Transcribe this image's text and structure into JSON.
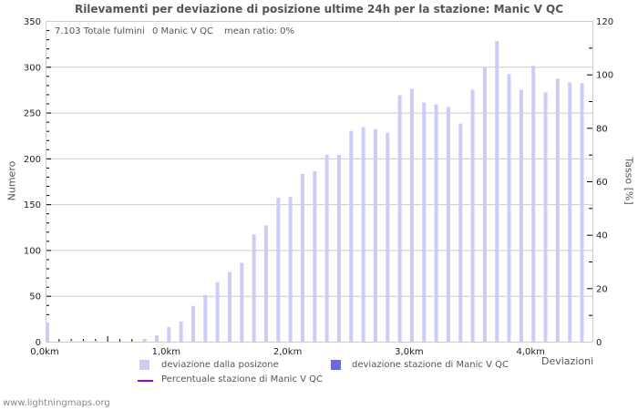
{
  "title": "Rilevamenti per deviazione di posizione ultime 24h per la stazione: Manic V QC",
  "info": {
    "total": "7.103 Totale fulmini",
    "station": "0 Manic V QC",
    "ratio": "mean ratio: 0%"
  },
  "axes": {
    "left_title": "Numero",
    "right_title": "Tasso [%]",
    "x_title": "Deviazioni"
  },
  "legend": {
    "items": [
      {
        "label": "deviazione dalla posizone",
        "color": "#ccccf8",
        "type": "box"
      },
      {
        "label": "deviazione stazione di Manic V QC",
        "color": "#6666ee",
        "type": "box"
      },
      {
        "label": "Percentuale stazione di Manic V QC",
        "color": "#a000d8",
        "type": "line"
      }
    ]
  },
  "footer": "www.lightningmaps.org",
  "colors": {
    "bar": "#ccccf8",
    "station_bar": "#6666ee",
    "ratio_line": "#a000d8",
    "grid": "#cccccc",
    "tick": "#000000",
    "text": "#222222"
  },
  "chart_data": {
    "type": "bar",
    "title": "Rilevamenti per deviazione di posizione ultime 24h per la stazione: Manic V QC",
    "xlabel": "Deviazioni",
    "ylabel": "Numero",
    "y2label": "Tasso [%]",
    "ylim": [
      0,
      350
    ],
    "y2lim": [
      0,
      120
    ],
    "yticks": [
      0,
      50,
      100,
      150,
      200,
      250,
      300,
      350
    ],
    "y2ticks": [
      0,
      20,
      40,
      60,
      80,
      100,
      120
    ],
    "xticks": [
      {
        "value": 0,
        "label": "0,0km"
      },
      {
        "value": 1,
        "label": "1,0km"
      },
      {
        "value": 2,
        "label": "2,0km"
      },
      {
        "value": 3,
        "label": "3,0km"
      },
      {
        "value": 4,
        "label": "4,0km"
      }
    ],
    "grid": true,
    "legend_position": "bottom",
    "x": [
      0.0,
      0.1,
      0.2,
      0.3,
      0.4,
      0.5,
      0.6,
      0.7,
      0.8,
      0.9,
      1.0,
      1.1,
      1.2,
      1.3,
      1.4,
      1.5,
      1.6,
      1.7,
      1.8,
      1.9,
      2.0,
      2.1,
      2.2,
      2.3,
      2.4,
      2.5,
      2.6,
      2.7,
      2.8,
      2.9,
      3.0,
      3.1,
      3.2,
      3.3,
      3.4,
      3.5,
      3.6,
      3.7,
      3.8,
      3.9,
      4.0,
      4.1,
      4.2,
      4.3,
      4.4
    ],
    "series": [
      {
        "name": "deviazione dalla posizone",
        "axis": "left",
        "values": [
          21,
          0,
          1,
          1,
          1,
          0,
          0,
          0,
          3,
          7,
          16,
          22,
          39,
          51,
          65,
          76,
          86,
          117,
          127,
          157,
          158,
          183,
          186,
          204,
          204,
          230,
          234,
          232,
          228,
          269,
          276,
          261,
          259,
          256,
          238,
          275,
          300,
          328,
          292,
          275,
          301,
          272,
          287,
          283,
          282
        ]
      },
      {
        "name": "deviazione stazione di Manic V QC",
        "axis": "left",
        "values": [
          0,
          0,
          0,
          0,
          0,
          0,
          0,
          0,
          0,
          0,
          0,
          0,
          0,
          0,
          0,
          0,
          0,
          0,
          0,
          0,
          0,
          0,
          0,
          0,
          0,
          0,
          0,
          0,
          0,
          0,
          0,
          0,
          0,
          0,
          0,
          0,
          0,
          0,
          0,
          0,
          0,
          0,
          0,
          0,
          0
        ]
      },
      {
        "name": "Percentuale stazione di Manic V QC",
        "axis": "right",
        "values": [
          0,
          0,
          0,
          0,
          0,
          0,
          0,
          0,
          0,
          0,
          0,
          0,
          0,
          0,
          0,
          0,
          0,
          0,
          0,
          0,
          0,
          0,
          0,
          0,
          0,
          0,
          0,
          0,
          0,
          0,
          0,
          0,
          0,
          0,
          0,
          0,
          0,
          0,
          0,
          0,
          0,
          0,
          0,
          0,
          0
        ]
      }
    ]
  }
}
